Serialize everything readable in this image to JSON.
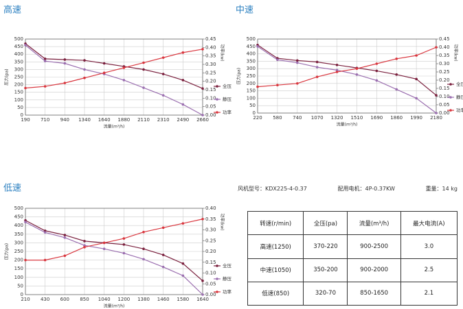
{
  "chart_data": [
    {
      "type": "line",
      "title": "高速",
      "y_label": "压力(pa)",
      "y2_label": "功率(kw)",
      "x_label": "流量(m³/h)",
      "categories": [
        "190",
        "710",
        "940",
        "1340",
        "1640",
        "1880",
        "2110",
        "2310",
        "2490",
        "2660"
      ],
      "ylim": [
        0,
        500
      ],
      "yticks": [
        0,
        50,
        100,
        150,
        200,
        250,
        300,
        350,
        400,
        450,
        500
      ],
      "y2lim": [
        0,
        0.45
      ],
      "y2ticks": [
        {
          "value": 0,
          "label": "0.00"
        },
        0.05,
        {
          "value": 0.1,
          "label": "0.10"
        },
        0.15,
        {
          "value": 0.2,
          "label": "0.20"
        },
        0.25,
        {
          "value": 0.3,
          "label": "0.30"
        },
        0.35,
        {
          "value": 0.4,
          "label": "0.40"
        },
        0.45
      ],
      "grid": true,
      "series": [
        {
          "name": "全压",
          "color": "#7a1f3d",
          "values": [
            470,
            370,
            365,
            360,
            340,
            320,
            300,
            270,
            230,
            175
          ]
        },
        {
          "name": "静压",
          "color": "#9b6fb0",
          "values": [
            460,
            355,
            340,
            300,
            270,
            230,
            180,
            130,
            70,
            0
          ]
        },
        {
          "name": "功率",
          "color": "#d9363e",
          "axis": "y2",
          "values": [
            0.16,
            0.17,
            0.19,
            0.22,
            0.25,
            0.28,
            0.31,
            0.34,
            0.37,
            0.39
          ]
        }
      ]
    },
    {
      "type": "line",
      "title": "中速",
      "y_label": "压力(pa)",
      "y2_label": "功率(kw)",
      "x_label": "流量(m³/h)",
      "categories": [
        "220",
        "580",
        "740",
        "1070",
        "1320",
        "1510",
        "1690",
        "1860",
        "1990",
        "2180"
      ],
      "ylim": [
        0,
        500
      ],
      "yticks": [
        0,
        50,
        100,
        150,
        200,
        250,
        300,
        350,
        400,
        450,
        500
      ],
      "y2lim": [
        0,
        0.45
      ],
      "y2ticks": [
        {
          "value": 0,
          "label": "0.00"
        },
        0.05,
        {
          "value": 0.1,
          "label": "0.10"
        },
        0.15,
        {
          "value": 0.2,
          "label": "0.20"
        },
        0.25,
        {
          "value": 0.3,
          "label": "0.30"
        },
        0.35,
        {
          "value": 0.4,
          "label": "0.40"
        },
        0.45
      ],
      "grid": true,
      "series": [
        {
          "name": "全压",
          "color": "#7a1f3d",
          "values": [
            460,
            370,
            355,
            345,
            325,
            305,
            285,
            260,
            230,
            120
          ]
        },
        {
          "name": "静压",
          "color": "#9b6fb0",
          "values": [
            450,
            360,
            340,
            310,
            290,
            260,
            220,
            160,
            100,
            0
          ]
        },
        {
          "name": "功率",
          "color": "#d9363e",
          "axis": "y2",
          "values": [
            0.16,
            0.17,
            0.18,
            0.22,
            0.25,
            0.27,
            0.3,
            0.33,
            0.35,
            0.4
          ]
        }
      ]
    },
    {
      "type": "line",
      "title": "低速",
      "y_label": "压力(pa)",
      "y2_label": "功率(kw)",
      "x_label": "流量(m³/h)",
      "categories": [
        "210",
        "430",
        "600",
        "850",
        "1040",
        "1200",
        "1380",
        "1460",
        "1580",
        "1640"
      ],
      "ylim": [
        0,
        500
      ],
      "yticks": [
        0,
        50,
        100,
        150,
        200,
        250,
        300,
        350,
        400,
        450,
        500
      ],
      "y2lim": [
        0,
        0.4
      ],
      "y2ticks": [
        {
          "value": 0,
          "label": "0.00"
        },
        0.05,
        {
          "value": 0.1,
          "label": "0.10"
        },
        0.15,
        {
          "value": 0.2,
          "label": "0.20"
        },
        0.25,
        {
          "value": 0.3,
          "label": "0.30"
        },
        0.35,
        {
          "value": 0.4,
          "label": "0.40"
        }
      ],
      "grid": true,
      "series": [
        {
          "name": "全压",
          "color": "#7a1f3d",
          "values": [
            430,
            370,
            345,
            310,
            300,
            290,
            265,
            230,
            180,
            80
          ]
        },
        {
          "name": "静压",
          "color": "#9b6fb0",
          "values": [
            420,
            360,
            330,
            285,
            265,
            240,
            205,
            160,
            110,
            0
          ]
        },
        {
          "name": "功率",
          "color": "#d9363e",
          "axis": "y2",
          "values": [
            0.16,
            0.16,
            0.18,
            0.22,
            0.24,
            0.26,
            0.29,
            0.31,
            0.33,
            0.35
          ]
        }
      ]
    }
  ],
  "specs": [
    "风机型号：KDX225-4-0.37",
    "配用电机：4P-0.37KW",
    "重量：14 kg"
  ],
  "table": {
    "header": [
      "转速(r/min)",
      "全压(pa)",
      "流量(m³/h)",
      "最大电流(A)"
    ],
    "rows": [
      [
        "高速(1250)",
        "370-220",
        "900-2500",
        "3.0"
      ],
      [
        "中速(1050)",
        "350-200",
        "900-2000",
        "2.5"
      ],
      [
        "低速(850)",
        "320-70",
        "850-1650",
        "2.1"
      ]
    ]
  }
}
